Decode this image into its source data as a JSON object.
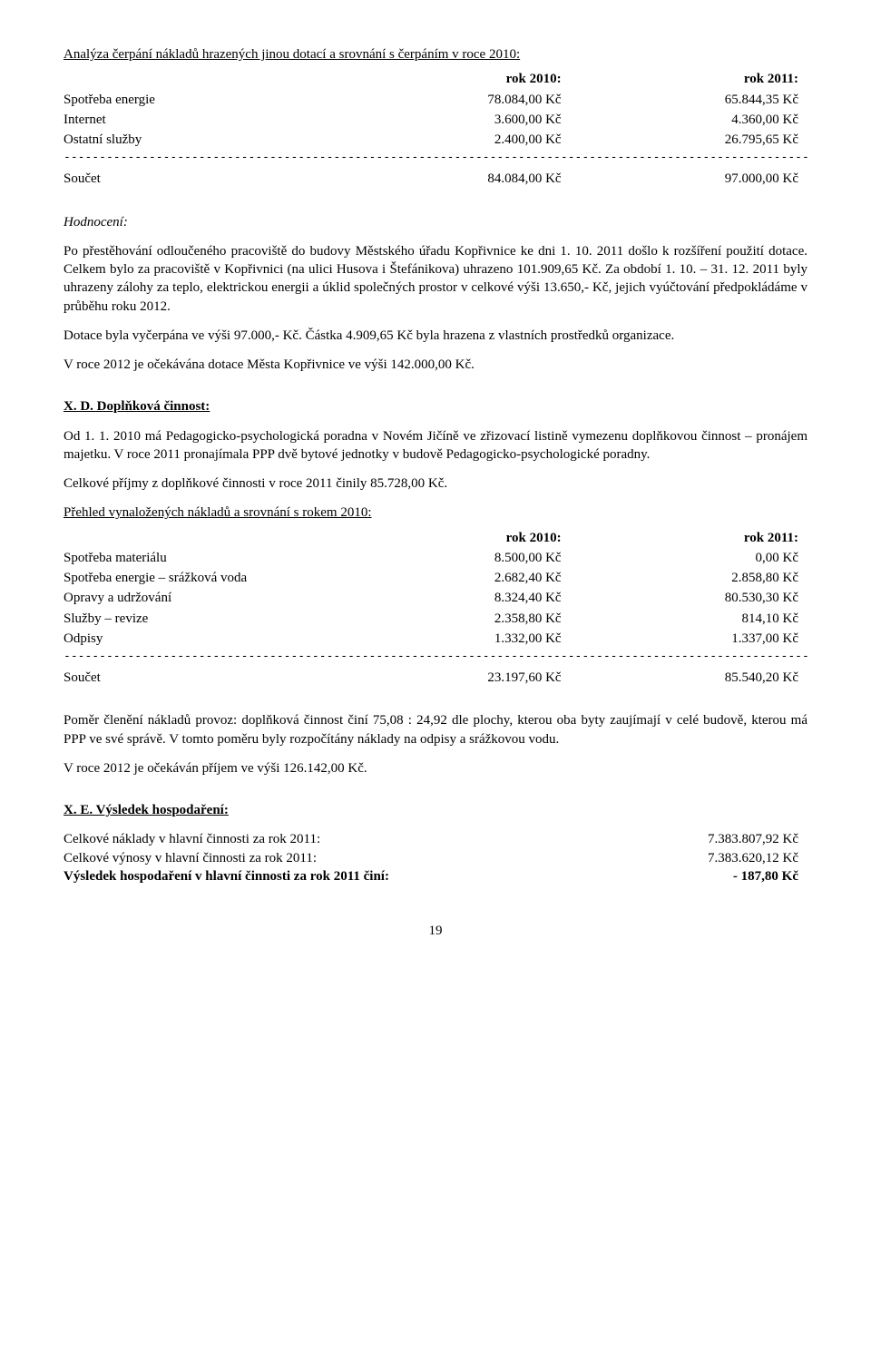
{
  "title1": "Analýza čerpání nákladů hrazených jinou dotací a srovnání s čerpáním v roce 2010:",
  "tableA": {
    "hdr1": "rok 2010:",
    "hdr2": "rok 2011:",
    "rows": [
      {
        "label": "Spotřeba energie",
        "v1": "78.084,00 Kč",
        "v2": "65.844,35 Kč"
      },
      {
        "label": "Internet",
        "v1": "3.600,00 Kč",
        "v2": "4.360,00 Kč"
      },
      {
        "label": "Ostatní služby",
        "v1": "2.400,00 Kč",
        "v2": "26.795,65 Kč"
      }
    ],
    "sumLabel": "Součet",
    "sumV1": "84.084,00 Kč",
    "sumV2": "97.000,00 Kč"
  },
  "hodnoceniLabel": "Hodnocení:",
  "para1": "Po přestěhování odloučeného pracoviště do budovy Městského úřadu Kopřivnice ke dni 1. 10. 2011 došlo k rozšíření použití dotace. Celkem bylo za pracoviště v Kopřivnici (na ulici Husova i Štefánikova) uhrazeno 101.909,65 Kč. Za období 1. 10. – 31. 12. 2011 byly uhrazeny zálohy za teplo, elektrickou energii a úklid společných prostor v celkové výši 13.650,- Kč, jejich vyúčtování předpokládáme v průběhu roku 2012.",
  "para2": "Dotace byla vyčerpána ve výši 97.000,- Kč. Částka 4.909,65 Kč byla hrazena z vlastních prostředků organizace.",
  "para3": "V roce 2012 je očekávána dotace Města Kopřivnice ve výši 142.000,00 Kč.",
  "secD": "X. D. Doplňková činnost:",
  "para4": "Od 1. 1. 2010 má Pedagogicko-psychologická poradna v Novém Jičíně ve zřizovací listině vymezenu doplňkovou činnost – pronájem majetku. V roce 2011 pronajímala PPP dvě bytové jednotky v budově Pedagogicko-psychologické poradny.",
  "para5": "Celkové příjmy z doplňkové činnosti v roce 2011 činily 85.728,00 Kč.",
  "title2": "Přehled vynaložených nákladů a srovnání s rokem 2010:",
  "tableB": {
    "hdr1": "rok 2010:",
    "hdr2": "rok 2011:",
    "rows": [
      {
        "label": "Spotřeba materiálu",
        "v1": "8.500,00 Kč",
        "v2": "0,00 Kč"
      },
      {
        "label": "Spotřeba energie – srážková voda",
        "v1": "2.682,40 Kč",
        "v2": "2.858,80 Kč"
      },
      {
        "label": "Opravy a udržování",
        "v1": "8.324,40 Kč",
        "v2": "80.530,30 Kč"
      },
      {
        "label": "Služby – revize",
        "v1": "2.358,80 Kč",
        "v2": "814,10 Kč"
      },
      {
        "label": "Odpisy",
        "v1": "1.332,00 Kč",
        "v2": "1.337,00 Kč"
      }
    ],
    "sumLabel": "Součet",
    "sumV1": "23.197,60 Kč",
    "sumV2": "85.540,20 Kč"
  },
  "para6": "Poměr členění nákladů provoz: doplňková činnost činí 75,08 : 24,92 dle plochy, kterou oba byty zaujímají v celé budově, kterou má PPP ve své správě. V tomto poměru byly rozpočítány náklady na odpisy a srážkovou vodu.",
  "para7": "V roce 2012 je očekáván příjem ve výši 126.142,00 Kč.",
  "secE": "X. E. Výsledek hospodaření:",
  "resRows": [
    {
      "label": "Celkové náklady v hlavní činnosti za rok 2011:",
      "val": "7.383.807,92 Kč",
      "bold": false
    },
    {
      "label": "Celkové výnosy v hlavní činnosti za rok 2011:",
      "val": "7.383.620,12 Kč",
      "bold": false
    },
    {
      "label": "Výsledek hospodaření v hlavní činnosti za rok 2011 činí:",
      "val": "-  187,80 Kč",
      "bold": true
    }
  ],
  "dashes": "--------------------------------------------------------------------------------------------------------------------------",
  "pageNumber": "19"
}
